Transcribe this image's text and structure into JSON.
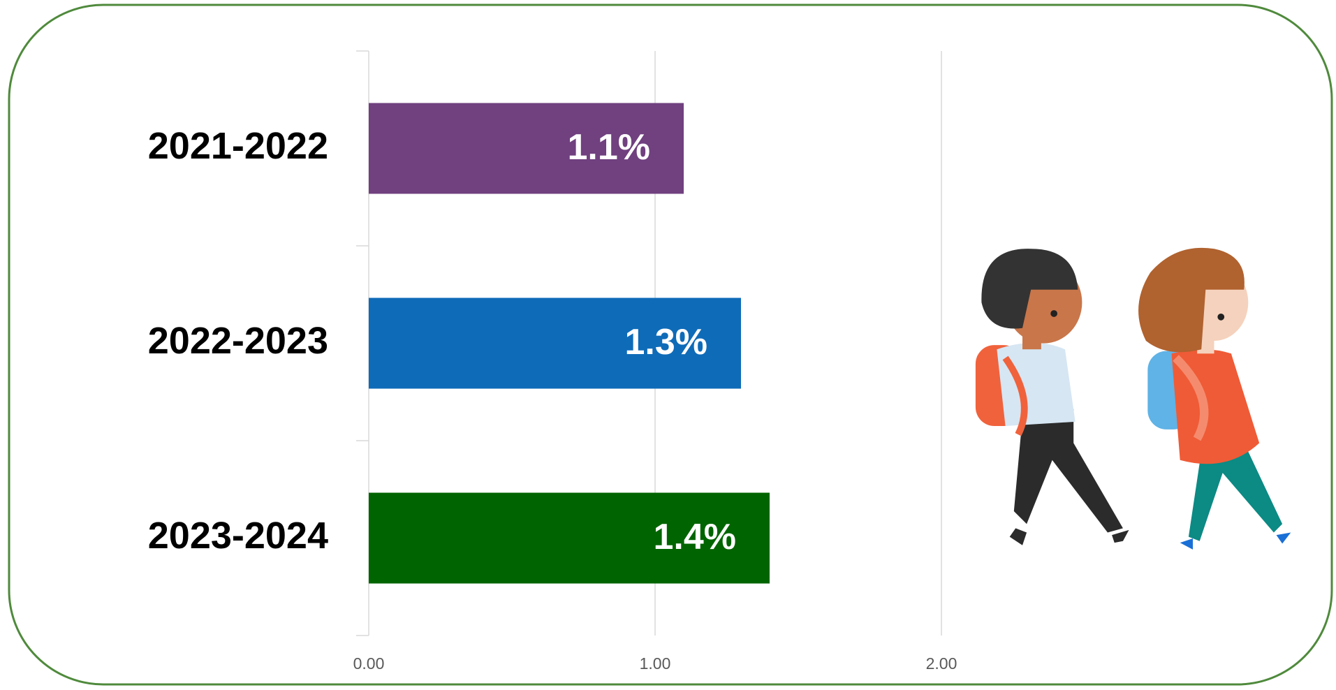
{
  "chart_data": {
    "type": "bar",
    "orientation": "horizontal",
    "categories": [
      "2021-2022",
      "2022-2023",
      "2023-2024"
    ],
    "values": [
      1.1,
      1.3,
      1.4
    ],
    "value_labels": [
      "1.1%",
      "1.3%",
      "1.4%"
    ],
    "colors": [
      "#70407f",
      "#0e6bb8",
      "#006400"
    ],
    "xlim": [
      0,
      3.3
    ],
    "xticks": [
      {
        "value": 0,
        "label": "0.00"
      },
      {
        "value": 1,
        "label": "1.00"
      },
      {
        "value": 2,
        "label": "2.00"
      }
    ],
    "grid": true
  }
}
